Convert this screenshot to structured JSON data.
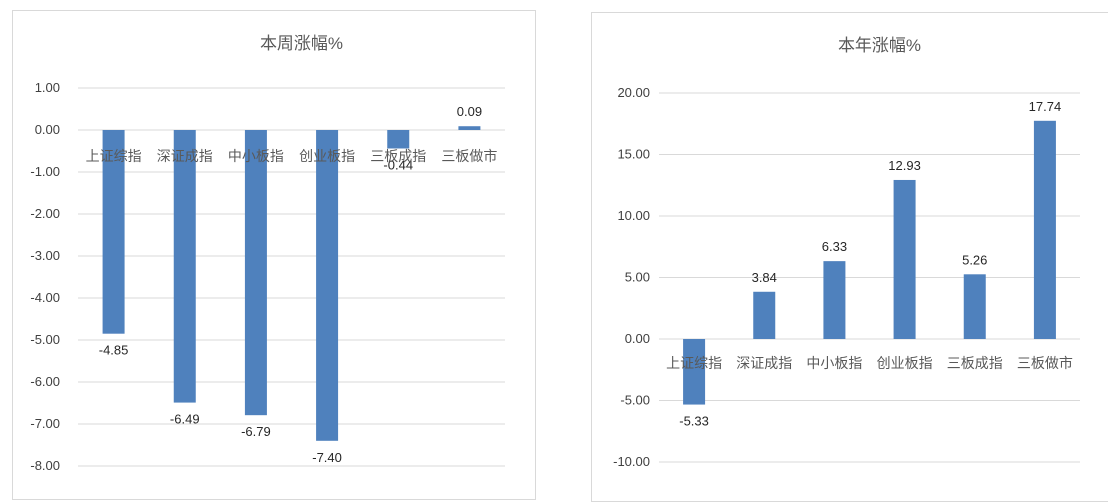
{
  "colors": {
    "bar": "#4f81bd",
    "grid": "#d9d9d9",
    "border": "#d9d9d9"
  },
  "chart_data": [
    {
      "type": "bar",
      "title": "本周涨幅%",
      "categories": [
        "上证综指",
        "深证成指",
        "中小板指",
        "创业板指",
        "三板成指",
        "三板做市"
      ],
      "values": [
        -4.85,
        -6.49,
        -6.79,
        -7.4,
        -0.44,
        0.09
      ],
      "value_labels": [
        "-4.85",
        "-6.49",
        "-6.79",
        "-7.40",
        "-0.44",
        "0.09"
      ],
      "ylim": [
        -8,
        1
      ],
      "yticks": [
        "1.00",
        "0.00",
        "-1.00",
        "-2.00",
        "-3.00",
        "-4.00",
        "-5.00",
        "-6.00",
        "-7.00",
        "-8.00"
      ],
      "grid": true,
      "legend": "none"
    },
    {
      "type": "bar",
      "title": "本年涨幅%",
      "categories": [
        "上证综指",
        "深证成指",
        "中小板指",
        "创业板指",
        "三板成指",
        "三板做市"
      ],
      "values": [
        -5.33,
        3.84,
        6.33,
        12.93,
        5.26,
        17.74
      ],
      "value_labels": [
        "-5.33",
        "3.84",
        "6.33",
        "12.93",
        "5.26",
        "17.74"
      ],
      "ylim": [
        -10,
        20
      ],
      "yticks": [
        "20.00",
        "15.00",
        "10.00",
        "5.00",
        "0.00",
        "-5.00",
        "-10.00"
      ],
      "grid": true,
      "legend": "none"
    }
  ]
}
